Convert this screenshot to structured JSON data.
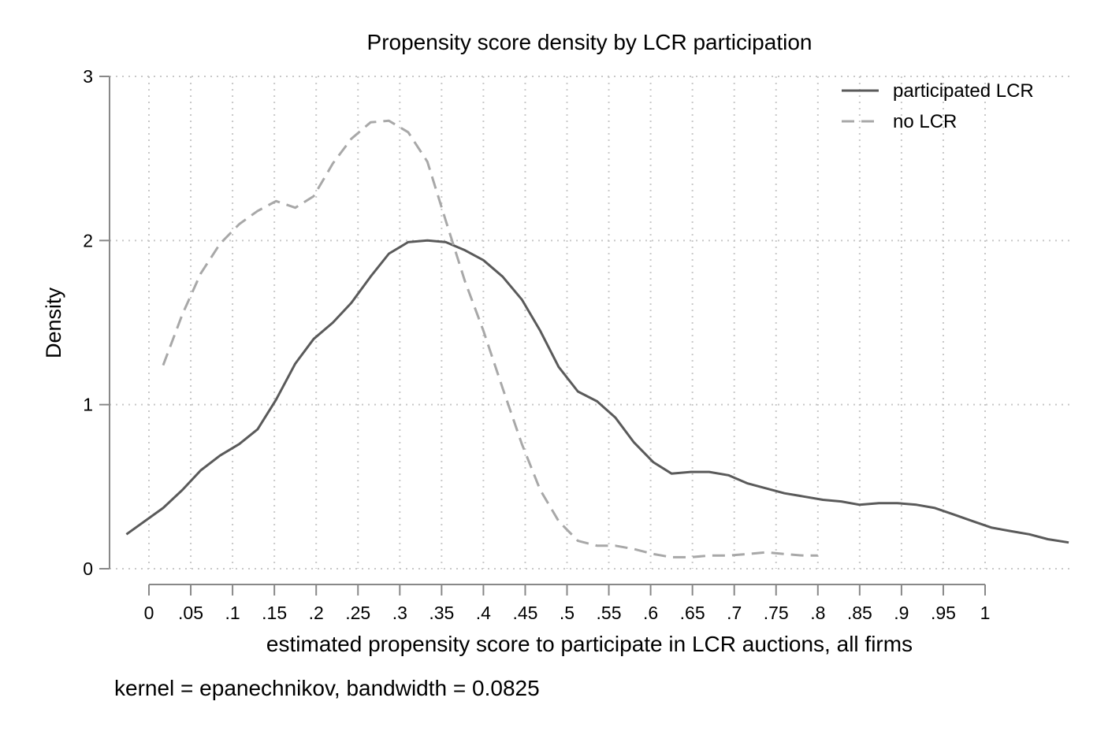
{
  "chart_data": {
    "type": "line",
    "title": "Propensity score density by LCR participation",
    "xlabel": "estimated propensity score to participate in LCR auctions, all firms",
    "ylabel": "Density",
    "note": "kernel = epanechnikov, bandwidth = 0.0825",
    "xlim": [
      -0.03,
      1.11
    ],
    "ylim": [
      0,
      3
    ],
    "x_ticks": [
      0,
      0.05,
      0.1,
      0.15,
      0.2,
      0.25,
      0.3,
      0.35,
      0.4,
      0.45,
      0.5,
      0.55,
      0.6,
      0.65,
      0.7,
      0.75,
      0.8,
      0.85,
      0.9,
      0.95,
      1
    ],
    "x_tick_labels": [
      "0",
      ".05",
      ".1",
      ".15",
      ".2",
      ".25",
      ".3",
      ".35",
      ".4",
      ".45",
      ".5",
      ".55",
      ".6",
      ".65",
      ".7",
      ".75",
      ".8",
      ".85",
      ".9",
      ".95",
      "1"
    ],
    "y_ticks": [
      0,
      1,
      2,
      3
    ],
    "y_tick_labels": [
      "0",
      "1",
      "2",
      "3"
    ],
    "grid": true,
    "legend_position": "top-right",
    "colors": {
      "participated": "#5a5a5a",
      "no_lcr": "#a8a8a8",
      "grid": "#c8c8c8",
      "axis": "#888888"
    },
    "series": [
      {
        "name": "participated LCR",
        "style": "solid",
        "x": [
          -0.027,
          0.017,
          0.04,
          0.062,
          0.085,
          0.108,
          0.13,
          0.152,
          0.175,
          0.197,
          0.22,
          0.242,
          0.265,
          0.287,
          0.31,
          0.333,
          0.355,
          0.378,
          0.4,
          0.423,
          0.446,
          0.468,
          0.49,
          0.513,
          0.536,
          0.558,
          0.58,
          0.603,
          0.625,
          0.648,
          0.67,
          0.693,
          0.716,
          0.738,
          0.76,
          0.783,
          0.806,
          0.828,
          0.85,
          0.873,
          0.895,
          0.918,
          0.94,
          0.963,
          0.985,
          1.008,
          1.03,
          1.053,
          1.075,
          1.1
        ],
        "y": [
          0.21,
          0.37,
          0.48,
          0.6,
          0.69,
          0.76,
          0.85,
          1.03,
          1.25,
          1.4,
          1.5,
          1.62,
          1.78,
          1.92,
          1.99,
          2.0,
          1.99,
          1.94,
          1.88,
          1.78,
          1.64,
          1.45,
          1.23,
          1.08,
          1.02,
          0.92,
          0.77,
          0.65,
          0.58,
          0.59,
          0.59,
          0.57,
          0.52,
          0.49,
          0.46,
          0.44,
          0.42,
          0.41,
          0.39,
          0.4,
          0.4,
          0.39,
          0.37,
          0.33,
          0.29,
          0.25,
          0.23,
          0.21,
          0.18,
          0.16
        ]
      },
      {
        "name": "no LCR",
        "style": "dashed",
        "x": [
          0.017,
          0.04,
          0.062,
          0.085,
          0.108,
          0.13,
          0.152,
          0.175,
          0.197,
          0.22,
          0.242,
          0.265,
          0.287,
          0.31,
          0.333,
          0.355,
          0.378,
          0.4,
          0.423,
          0.446,
          0.468,
          0.49,
          0.513,
          0.536,
          0.558,
          0.58,
          0.603,
          0.625,
          0.648,
          0.67,
          0.693,
          0.716,
          0.738,
          0.76,
          0.783,
          0.8
        ],
        "y": [
          1.24,
          1.55,
          1.8,
          1.98,
          2.1,
          2.18,
          2.24,
          2.2,
          2.27,
          2.47,
          2.62,
          2.72,
          2.73,
          2.66,
          2.48,
          2.12,
          1.75,
          1.45,
          1.1,
          0.76,
          0.48,
          0.29,
          0.17,
          0.14,
          0.14,
          0.12,
          0.09,
          0.07,
          0.07,
          0.08,
          0.08,
          0.09,
          0.1,
          0.09,
          0.08,
          0.08
        ]
      }
    ]
  }
}
